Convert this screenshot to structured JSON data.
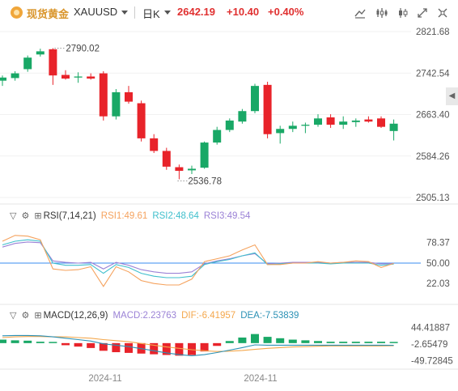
{
  "header": {
    "name": "现货黄金",
    "symbol": "XAUUSD",
    "period": "日K",
    "price": "2642.19",
    "change": "+10.40",
    "change_pct": "+0.40%"
  },
  "icons": [
    "draw-line-icon",
    "indicator-icon",
    "candle-type-icon",
    "fullscreen-icon",
    "settings-icon"
  ],
  "colors": {
    "up": "#19a866",
    "down": "#e8232a",
    "rsi1": "#f5a25d",
    "rsi2": "#3fbfcc",
    "rsi3": "#9b82d6",
    "macd_line": "#2b91b5",
    "signal_line": "#f4a74c",
    "base_line": "#3a8ef0"
  },
  "price_axis": {
    "labels": [
      "2821.68",
      "2742.54",
      "2663.40",
      "2584.26",
      "2505.13"
    ]
  },
  "rsi_panel": {
    "title": "RSI(7,14,21)",
    "rsi1": "RSI1:49.61",
    "rsi2": "RSI2:48.64",
    "rsi3": "RSI3:49.54",
    "axis_labels": [
      "78.37",
      "50.00",
      "22.03"
    ]
  },
  "macd_panel": {
    "title": "MACD(12,26,9)",
    "macd": "MACD:2.23763",
    "dif": "DIF:-6.41957",
    "dea": "DEA:-7.53839",
    "axis_labels": [
      "44.41887",
      "-2.65479",
      "-49.72845"
    ]
  },
  "x_axis": {
    "labels": [
      "2024-11",
      "2024-11"
    ]
  },
  "chart_data": {
    "type": "candlestick",
    "price_range": [
      2505.13,
      2821.68
    ],
    "annotations": [
      {
        "text": "2790.02",
        "value": 2790.02
      },
      {
        "text": "2536.78",
        "value": 2536.78
      }
    ],
    "candles": [
      {
        "o": 2728,
        "h": 2738,
        "l": 2718,
        "c": 2734
      },
      {
        "o": 2733,
        "h": 2746,
        "l": 2728,
        "c": 2742
      },
      {
        "o": 2750,
        "h": 2776,
        "l": 2745,
        "c": 2772
      },
      {
        "o": 2778,
        "h": 2789,
        "l": 2774,
        "c": 2784
      },
      {
        "o": 2788,
        "h": 2790.02,
        "l": 2720,
        "c": 2738
      },
      {
        "o": 2739,
        "h": 2748,
        "l": 2730,
        "c": 2732
      },
      {
        "o": 2734,
        "h": 2744,
        "l": 2724,
        "c": 2736
      },
      {
        "o": 2736,
        "h": 2742,
        "l": 2730,
        "c": 2732
      },
      {
        "o": 2742,
        "h": 2746,
        "l": 2652,
        "c": 2660
      },
      {
        "o": 2660,
        "h": 2712,
        "l": 2654,
        "c": 2706
      },
      {
        "o": 2706,
        "h": 2718,
        "l": 2684,
        "c": 2688
      },
      {
        "o": 2685,
        "h": 2690,
        "l": 2612,
        "c": 2618
      },
      {
        "o": 2618,
        "h": 2626,
        "l": 2590,
        "c": 2594
      },
      {
        "o": 2594,
        "h": 2600,
        "l": 2558,
        "c": 2564
      },
      {
        "o": 2563,
        "h": 2568,
        "l": 2540,
        "c": 2556
      },
      {
        "o": 2557,
        "h": 2566,
        "l": 2550,
        "c": 2560
      },
      {
        "o": 2562,
        "h": 2612,
        "l": 2560,
        "c": 2610
      },
      {
        "o": 2610,
        "h": 2640,
        "l": 2606,
        "c": 2634
      },
      {
        "o": 2634,
        "h": 2656,
        "l": 2630,
        "c": 2652
      },
      {
        "o": 2650,
        "h": 2674,
        "l": 2646,
        "c": 2670
      },
      {
        "o": 2670,
        "h": 2722,
        "l": 2666,
        "c": 2718
      },
      {
        "o": 2720,
        "h": 2726,
        "l": 2618,
        "c": 2626
      },
      {
        "o": 2628,
        "h": 2642,
        "l": 2608,
        "c": 2636
      },
      {
        "o": 2636,
        "h": 2650,
        "l": 2630,
        "c": 2642
      },
      {
        "o": 2642,
        "h": 2648,
        "l": 2628,
        "c": 2644
      },
      {
        "o": 2644,
        "h": 2664,
        "l": 2640,
        "c": 2656
      },
      {
        "o": 2658,
        "h": 2664,
        "l": 2638,
        "c": 2644
      },
      {
        "o": 2644,
        "h": 2660,
        "l": 2636,
        "c": 2650
      },
      {
        "o": 2649,
        "h": 2656,
        "l": 2640,
        "c": 2652
      },
      {
        "o": 2654,
        "h": 2660,
        "l": 2648,
        "c": 2650
      },
      {
        "o": 2656,
        "h": 2660,
        "l": 2638,
        "c": 2640
      },
      {
        "o": 2632,
        "h": 2654,
        "l": 2614,
        "c": 2646
      }
    ],
    "rsi": {
      "range": [
        0,
        100
      ],
      "rsi1": [
        80,
        88,
        87,
        82,
        42,
        40,
        41,
        45,
        18,
        45,
        38,
        26,
        22,
        20,
        20,
        28,
        52,
        56,
        60,
        68,
        75,
        48,
        48,
        50,
        50,
        52,
        50,
        51,
        53,
        52,
        44,
        49.61
      ],
      "rsi2": [
        75,
        80,
        82,
        80,
        50,
        47,
        47,
        48,
        36,
        48,
        44,
        36,
        32,
        30,
        30,
        32,
        48,
        52,
        55,
        60,
        64,
        48,
        49,
        50,
        50,
        50,
        49,
        50,
        50,
        50,
        47,
        48.64
      ],
      "rsi3": [
        72,
        77,
        79,
        78,
        53,
        51,
        50,
        51,
        42,
        51,
        47,
        41,
        38,
        36,
        36,
        38,
        49,
        53,
        56,
        60,
        63,
        49,
        50,
        51,
        51,
        51,
        50,
        51,
        51,
        51,
        49,
        49.54
      ]
    },
    "macd": {
      "range": [
        -70,
        60
      ],
      "dif": [
        21,
        22,
        22,
        21,
        18,
        14,
        10,
        6,
        -2,
        -6,
        -10,
        -16,
        -22,
        -28,
        -33,
        -36,
        -33,
        -27,
        -20,
        -13,
        -5,
        -6,
        -6,
        -6,
        -6,
        -6,
        -6,
        -6,
        -6,
        -6,
        -6,
        -6.42
      ],
      "dea": [
        16,
        18,
        19,
        19,
        18,
        18,
        16,
        14,
        10,
        7,
        4,
        -1,
        -6,
        -11,
        -15,
        -19,
        -22,
        -24,
        -23,
        -21,
        -18,
        -15,
        -13,
        -11,
        -10,
        -9,
        -8,
        -8,
        -8,
        -8,
        -8,
        -7.54
      ],
      "hist": [
        10,
        8,
        7,
        4,
        0,
        -6,
        -10,
        -14,
        -22,
        -26,
        -28,
        -30,
        -32,
        -34,
        -36,
        -34,
        -24,
        -8,
        6,
        16,
        26,
        18,
        14,
        10,
        8,
        6,
        4,
        4,
        4,
        4,
        4,
        2.24
      ]
    }
  }
}
